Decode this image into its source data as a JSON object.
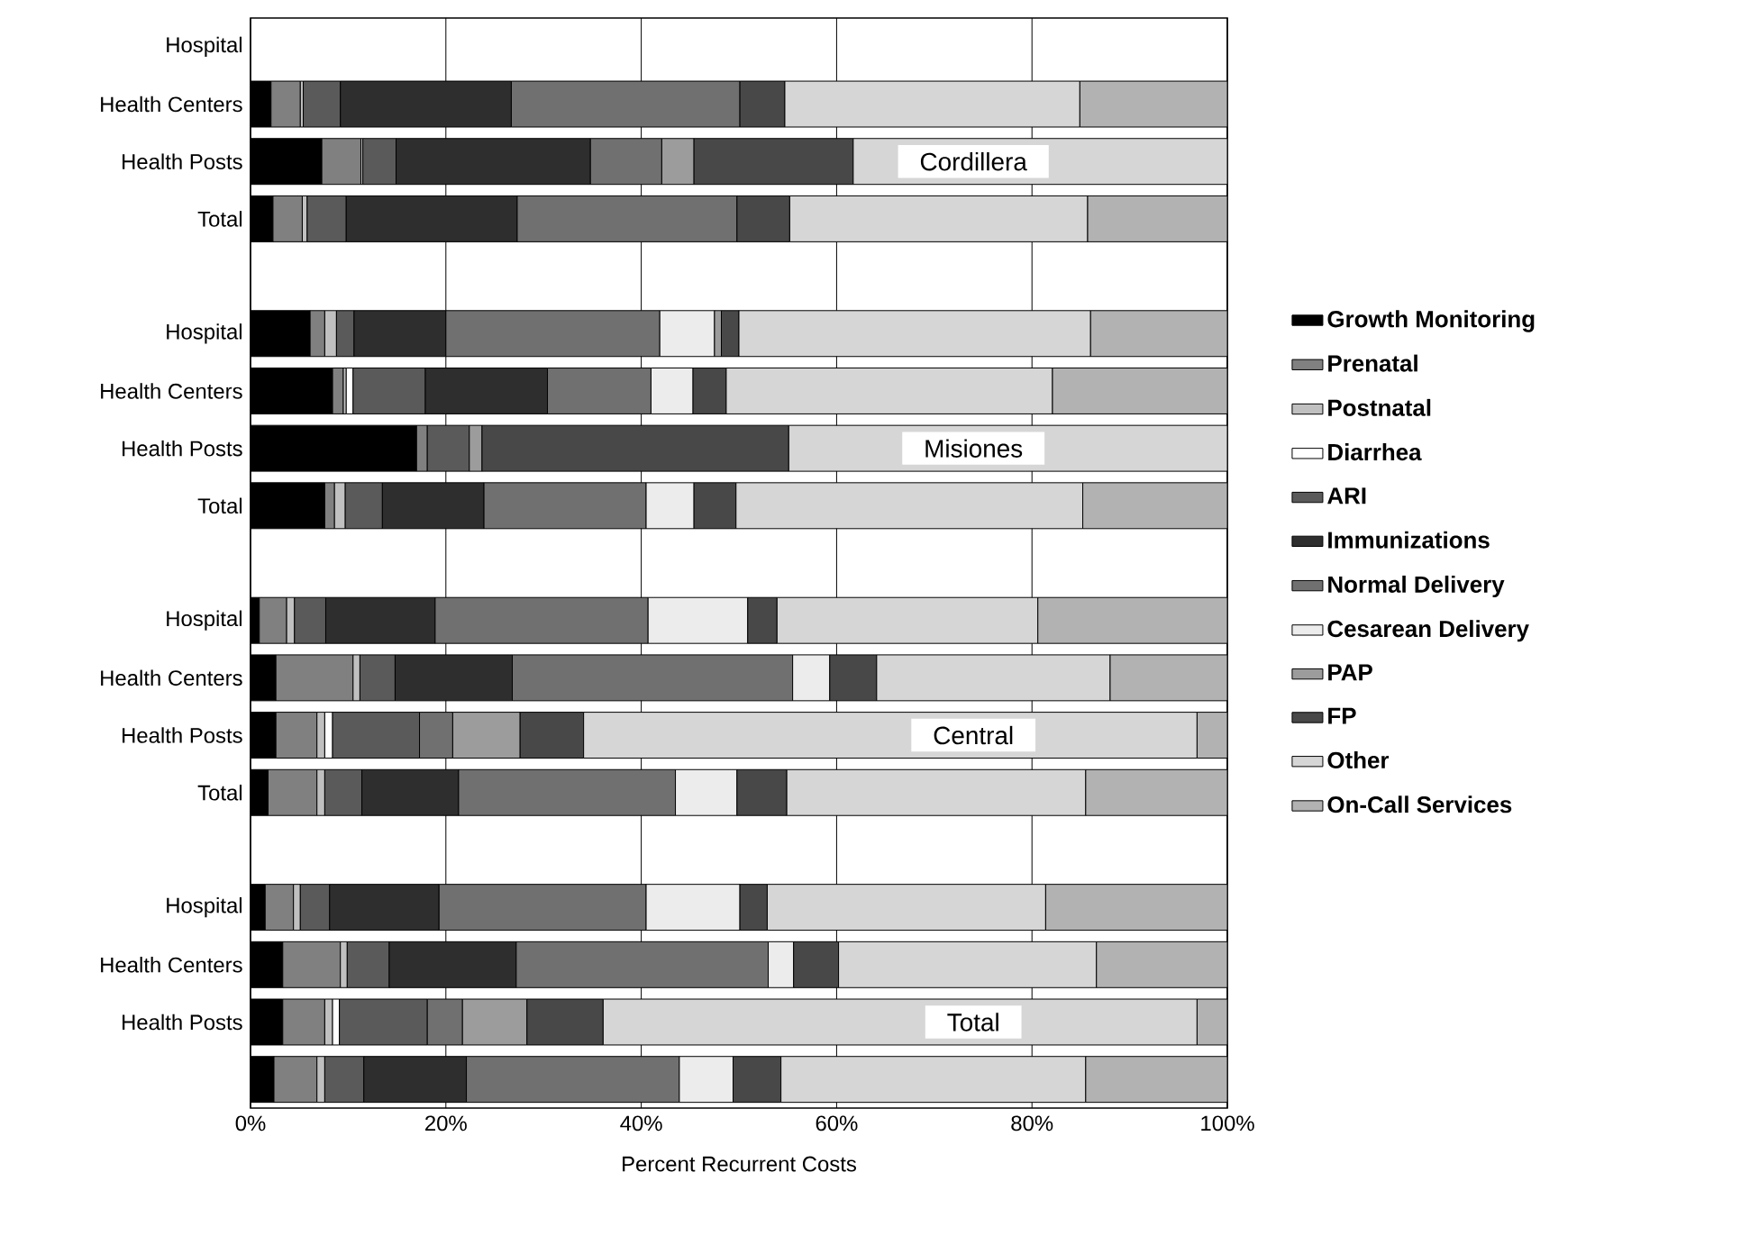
{
  "chart_data": {
    "type": "bar",
    "orientation": "horizontal",
    "stacked": true,
    "xlabel": "Percent Recurrent Costs",
    "categories": [
      "Hospital",
      "Health Centers",
      "Health Posts",
      "Total",
      null,
      "Hospital",
      "Health Centers",
      "Health Posts",
      "Total",
      null,
      "Hospital",
      "Health Centers",
      "Health Posts",
      "Total",
      null,
      "Hospital",
      "Health Centers",
      "Health Posts",
      null
    ],
    "xlim": [
      0,
      100
    ],
    "xticks": [
      {
        "value": 0,
        "label": "0%"
      },
      {
        "value": 20,
        "label": "20%"
      },
      {
        "value": 40,
        "label": "40%"
      },
      {
        "value": 60,
        "label": "60%"
      },
      {
        "value": 80,
        "label": "80%"
      },
      {
        "value": 100,
        "label": "100%"
      }
    ],
    "grid": "x",
    "legend": "right",
    "annotations": [
      "Cordillera",
      "Misiones",
      "Central",
      "Total"
    ],
    "series": [
      {
        "name": "Growth Monitoring",
        "color": "#000000",
        "values": [
          null,
          2.1,
          7.3,
          2.3,
          null,
          6.1,
          8.4,
          17.0,
          7.6,
          null,
          0.9,
          2.6,
          2.6,
          1.8,
          null,
          1.5,
          3.3,
          3.3,
          2.4
        ]
      },
      {
        "name": "Prenatal",
        "color": "#808080",
        "values": [
          null,
          3.0,
          4.0,
          3.0,
          null,
          1.5,
          1.1,
          1.1,
          1.0,
          null,
          2.8,
          7.9,
          4.2,
          5.0,
          null,
          2.9,
          5.9,
          4.3,
          4.4
        ]
      },
      {
        "name": "Postnatal",
        "color": "#c0c0c0",
        "values": [
          null,
          0.3,
          0.2,
          0.5,
          null,
          1.2,
          0.3,
          null,
          1.1,
          null,
          0.8,
          0.7,
          0.8,
          0.8,
          null,
          0.7,
          0.7,
          0.8,
          0.8
        ]
      },
      {
        "name": "Diarrhea",
        "color": "#ffffff",
        "values": [
          null,
          null,
          null,
          null,
          null,
          null,
          0.7,
          null,
          null,
          null,
          null,
          null,
          0.8,
          null,
          null,
          null,
          null,
          0.7,
          null
        ]
      },
      {
        "name": "ARI",
        "color": "#5a5a5a",
        "values": [
          null,
          3.8,
          3.4,
          4.0,
          null,
          1.8,
          7.4,
          4.3,
          3.8,
          null,
          3.2,
          3.6,
          8.9,
          3.8,
          null,
          3.0,
          4.3,
          9.0,
          4.0
        ]
      },
      {
        "name": "Immunizations",
        "color": "#2e2e2e",
        "values": [
          null,
          17.5,
          19.9,
          17.5,
          null,
          9.4,
          12.5,
          null,
          10.4,
          null,
          11.2,
          12.0,
          null,
          9.9,
          null,
          11.2,
          13.0,
          null,
          10.5
        ]
      },
      {
        "name": "Normal Delivery",
        "color": "#707070",
        "values": [
          null,
          23.4,
          7.3,
          22.5,
          null,
          21.9,
          10.6,
          null,
          16.6,
          null,
          21.8,
          28.7,
          3.4,
          22.2,
          null,
          21.2,
          25.8,
          3.6,
          21.8
        ]
      },
      {
        "name": "Cesarean Delivery",
        "color": "#ececec",
        "values": [
          null,
          null,
          null,
          null,
          null,
          5.6,
          4.3,
          null,
          4.9,
          null,
          10.2,
          3.8,
          null,
          6.3,
          null,
          9.6,
          2.6,
          null,
          5.5
        ]
      },
      {
        "name": "PAP",
        "color": "#9c9c9c",
        "values": [
          null,
          null,
          3.3,
          null,
          null,
          0.7,
          null,
          1.3,
          null,
          null,
          null,
          null,
          6.9,
          null,
          null,
          null,
          null,
          6.6,
          null
        ]
      },
      {
        "name": "FP",
        "color": "#484848",
        "values": [
          null,
          4.6,
          16.3,
          5.4,
          null,
          1.8,
          3.4,
          31.4,
          4.3,
          null,
          3.0,
          4.8,
          6.5,
          5.1,
          null,
          2.8,
          4.6,
          7.8,
          4.9
        ]
      },
      {
        "name": "Other",
        "color": "#d6d6d6",
        "values": [
          null,
          30.2,
          38.3,
          30.5,
          null,
          36.0,
          33.4,
          44.9,
          35.5,
          null,
          26.7,
          23.9,
          62.8,
          30.6,
          null,
          28.5,
          26.4,
          60.8,
          31.2
        ]
      },
      {
        "name": "On-Call Services",
        "color": "#b2b2b2",
        "values": [
          null,
          15.1,
          null,
          14.3,
          null,
          14.0,
          17.9,
          null,
          14.8,
          null,
          19.4,
          12.0,
          3.1,
          14.5,
          null,
          18.6,
          13.4,
          3.1,
          14.5
        ]
      }
    ]
  }
}
